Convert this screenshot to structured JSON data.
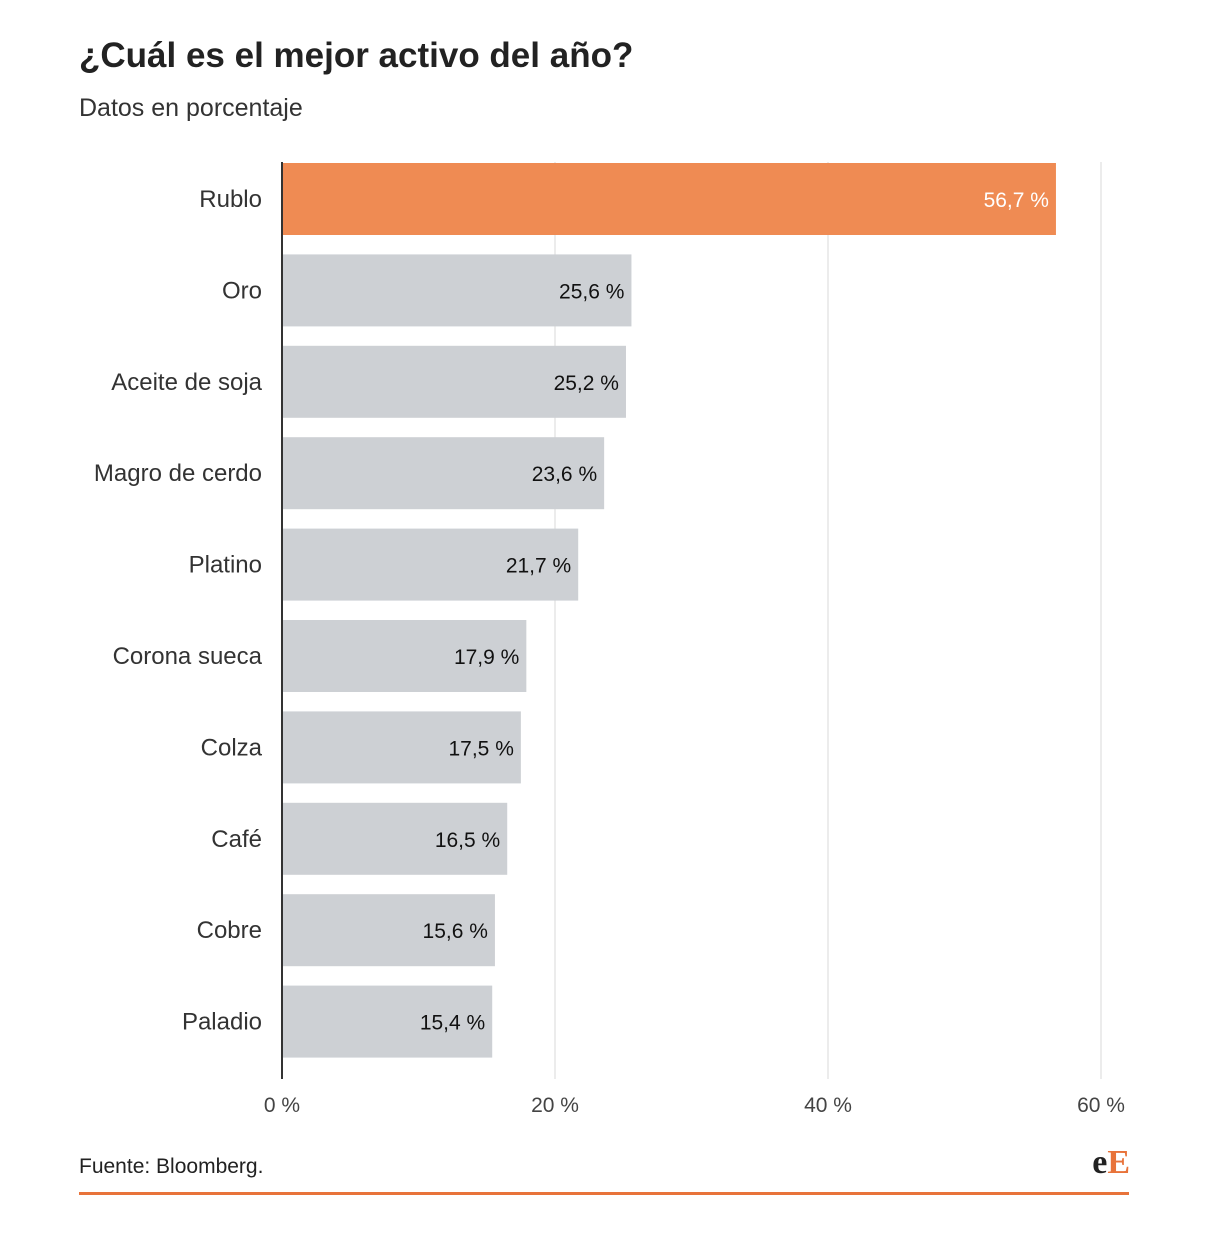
{
  "title": "¿Cuál es el mejor activo del año?",
  "subtitle": "Datos en porcentaje",
  "source": "Fuente: Bloomberg.",
  "logo": {
    "e": "e",
    "E": "E"
  },
  "colors": {
    "highlight": "#ef8b53",
    "bar": "#cdd0d4",
    "grid": "#e6e6e6",
    "axis": "#333333",
    "label_dark": "#111111",
    "label_light": "#ffffff",
    "brand": "#e8733a"
  },
  "chart_data": {
    "type": "bar",
    "orientation": "horizontal",
    "categories": [
      "Rublo",
      "Oro",
      "Aceite de soja",
      "Magro de cerdo",
      "Platino",
      "Corona sueca",
      "Colza",
      "Café",
      "Cobre",
      "Paladio"
    ],
    "values": [
      56.7,
      25.6,
      25.2,
      23.6,
      21.7,
      17.9,
      17.5,
      16.5,
      15.6,
      15.4
    ],
    "data_labels": [
      "56,7 %",
      "25,6 %",
      "25,2 %",
      "23,6 %",
      "21,7 %",
      "17,9 %",
      "17,5 %",
      "16,5 %",
      "15,6 %",
      "15,4 %"
    ],
    "highlight_index": 0,
    "xlim": [
      0,
      60
    ],
    "xticks": [
      0,
      20,
      40,
      60
    ],
    "xtick_labels": [
      "0 %",
      "20 %",
      "40 %",
      "60 %"
    ],
    "grid": true,
    "legend": "none"
  }
}
